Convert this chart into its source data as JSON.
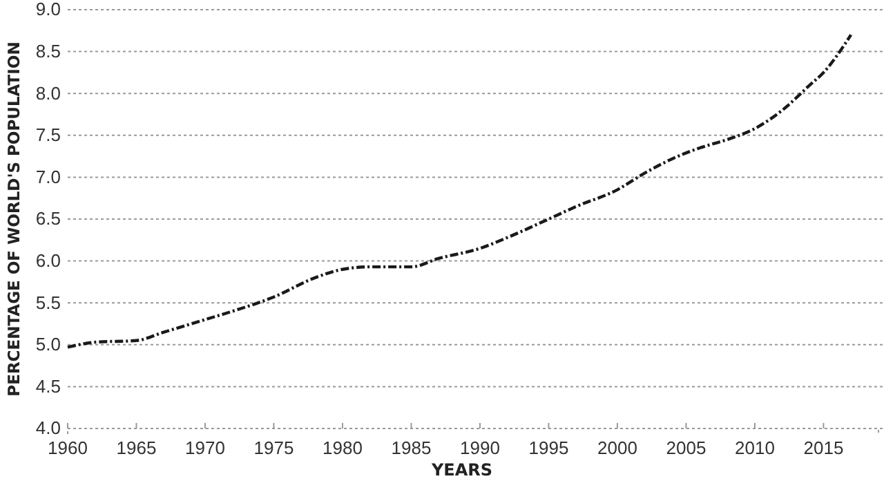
{
  "chart_data": {
    "type": "line",
    "xlabel": "YEARS",
    "ylabel": "PERCENTAGE OF WORLD'S POPULATION",
    "x": [
      1960,
      1962,
      1965,
      1967,
      1970,
      1972,
      1975,
      1978,
      1980,
      1982,
      1985,
      1987,
      1990,
      1992,
      1995,
      1997,
      2000,
      2002,
      2004,
      2006,
      2008,
      2010,
      2012,
      2014,
      2015,
      2017
    ],
    "series": [
      {
        "color": "#1a1a1a",
        "values": [
          4.97,
          5.03,
          5.05,
          5.15,
          5.3,
          5.4,
          5.57,
          5.8,
          5.9,
          5.93,
          5.93,
          6.03,
          6.15,
          6.28,
          6.5,
          6.65,
          6.85,
          7.05,
          7.22,
          7.35,
          7.45,
          7.58,
          7.8,
          8.1,
          8.25,
          8.7
        ]
      }
    ],
    "xlim": [
      1960,
      2019
    ],
    "xticks": [
      1960,
      1965,
      1970,
      1975,
      1980,
      1985,
      1990,
      1995,
      2000,
      2005,
      2010,
      2015
    ],
    "ylim": [
      4,
      9
    ],
    "yticks": [
      {
        "value": 4,
        "label": "4.0"
      },
      {
        "value": 4.5,
        "label": "4.5"
      },
      {
        "value": 5,
        "label": "5.0"
      },
      {
        "value": 5.5,
        "label": "5.5"
      },
      {
        "value": 6,
        "label": "6.0"
      },
      {
        "value": 6.5,
        "label": "6.5"
      },
      {
        "value": 7,
        "label": "7.0"
      },
      {
        "value": 7.5,
        "label": "7.5"
      },
      {
        "value": 8,
        "label": "8.0"
      },
      {
        "value": 8.5,
        "label": "8.5"
      },
      {
        "value": 9,
        "label": "9.0"
      }
    ],
    "grid": "y",
    "line_style": "dashed"
  }
}
